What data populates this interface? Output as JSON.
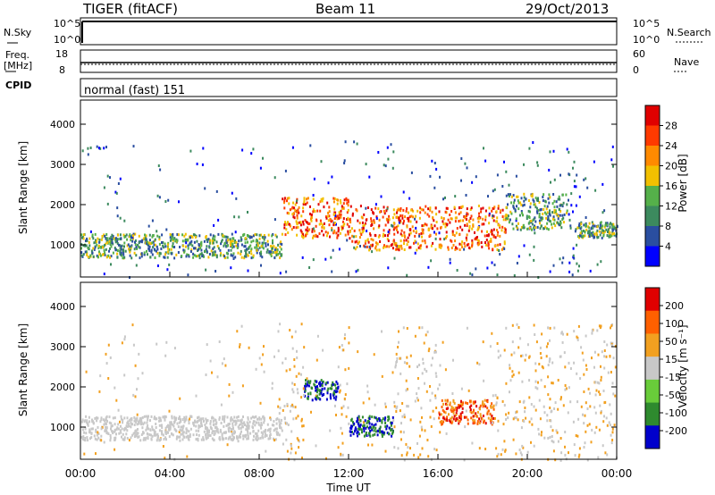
{
  "header": {
    "title": "TIGER (fitACF)",
    "beam": "Beam 11",
    "date": "29/Oct/2013"
  },
  "status_panels": {
    "nsky_label": "N.Sky",
    "nsky_ticks": [
      "10^5",
      "10^0"
    ],
    "nsearch_label": "N.Search",
    "nsearch_ticks": [
      "10^5",
      "10^0"
    ],
    "freq_label": "Freq.",
    "freq_unit": "[MHz]",
    "freq_ticks": [
      "18",
      "8"
    ],
    "nave_label": "Nave",
    "nave_ticks": [
      "60",
      "0"
    ],
    "cpid_label": "CPID",
    "cpid_value": "normal (fast) 151"
  },
  "chart_data": [
    {
      "type": "heatmap",
      "name": "power",
      "ylabel": "Slant Range [km]",
      "yticks": [
        1000,
        2000,
        3000,
        4000
      ],
      "ylim": [
        200,
        4600
      ],
      "xlim_hours": [
        0,
        24
      ],
      "colorbar_label": "Power [dB]",
      "colorbar_ticks": [
        "28",
        "24",
        "20",
        "16",
        "12",
        "8",
        "4"
      ],
      "colorbar_colors": [
        "#0000ff",
        "#2a4ea0",
        "#3c8a5e",
        "#55b04a",
        "#f2c000",
        "#ff8a00",
        "#ff3a00",
        "#e00000"
      ],
      "bands": [
        {
          "t0": 0.0,
          "t1": 9.0,
          "r0": 700,
          "r1": 1300,
          "intensity": "medium"
        },
        {
          "t0": 9.0,
          "t1": 12.0,
          "r0": 1200,
          "r1": 2200,
          "intensity": "high"
        },
        {
          "t0": 12.0,
          "t1": 19.0,
          "r0": 900,
          "r1": 2000,
          "intensity": "high"
        },
        {
          "t0": 19.0,
          "t1": 21.8,
          "r0": 1400,
          "r1": 2300,
          "intensity": "medium"
        },
        {
          "t0": 22.2,
          "t1": 24.0,
          "r0": 1200,
          "r1": 1600,
          "intensity": "medium"
        }
      ]
    },
    {
      "type": "heatmap",
      "name": "velocity",
      "ylabel": "Slant Range [km]",
      "yticks": [
        1000,
        2000,
        3000,
        4000
      ],
      "ylim": [
        200,
        4600
      ],
      "xlabel": "Time UT",
      "xticks": [
        "00:00",
        "04:00",
        "08:00",
        "12:00",
        "16:00",
        "20:00",
        "00:00"
      ],
      "xlim_hours": [
        0,
        24
      ],
      "colorbar_label": "Velocity [m s⁻¹]",
      "colorbar_ticks": [
        "200",
        "100",
        "50",
        "15",
        "-15",
        "-50",
        "-100",
        "-200"
      ],
      "colorbar_colors": [
        "#0000cc",
        "#2e8a2e",
        "#69cc3a",
        "#c8c8c8",
        "#f2a020",
        "#ff6000",
        "#e00000"
      ],
      "bands": [
        {
          "t0": 0.0,
          "t1": 9.0,
          "r0": 700,
          "r1": 1300,
          "intensity": "low"
        },
        {
          "t0": 10.0,
          "t1": 11.5,
          "r0": 1700,
          "r1": 2200,
          "intensity": "blue"
        },
        {
          "t0": 12.0,
          "t1": 14.0,
          "r0": 800,
          "r1": 1300,
          "intensity": "blue"
        },
        {
          "t0": 16.0,
          "t1": 18.5,
          "r0": 1100,
          "r1": 1700,
          "intensity": "orange"
        }
      ]
    }
  ]
}
